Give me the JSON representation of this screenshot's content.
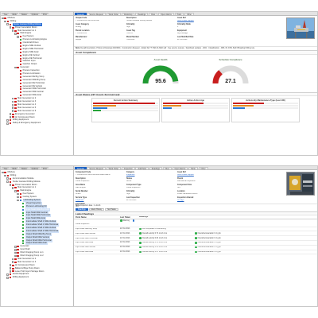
{
  "top": {
    "tree_tabs": [
      "Tree",
      "Work",
      "Status",
      "Options",
      "Print"
    ],
    "tree": [
      {
        "label": "Offshore",
        "indent": 0,
        "icon": "red",
        "exp": "-"
      },
      {
        "label": "Drilling",
        "indent": 1,
        "icon": "red",
        "exp": "-"
      },
      {
        "label": "Tender Assisted Drilling Module",
        "indent": 2,
        "icon": "red",
        "exp": "-",
        "selected": true
      },
      {
        "label": "Power Generation Room",
        "indent": 3,
        "icon": "red",
        "exp": "-"
      },
      {
        "label": "Main Generator no 1",
        "indent": 4,
        "icon": "red",
        "exp": "-"
      },
      {
        "label": "Main Engine",
        "indent": 5,
        "icon": "red",
        "exp": "-"
      },
      {
        "label": "Fuel System",
        "indent": 6,
        "icon": "red",
        "exp": "+"
      },
      {
        "label": "Process Lubricating Engine",
        "indent": 6,
        "icon": "green",
        "exp": "none"
      },
      {
        "label": "Crankshaft Driven",
        "indent": 6,
        "icon": "red",
        "exp": "none"
      },
      {
        "label": "Engine NDE Vertical",
        "indent": 6,
        "icon": "red",
        "exp": "none"
      },
      {
        "label": "Engine NDE Horizontal",
        "indent": 6,
        "icon": "red",
        "exp": "none"
      },
      {
        "label": "Engine NDE Axial",
        "indent": 6,
        "icon": "red",
        "exp": "none"
      },
      {
        "label": "Engine DE Vertical",
        "indent": 6,
        "icon": "red",
        "exp": "none"
      },
      {
        "label": "Engine DE Horizontal",
        "indent": 6,
        "icon": "red",
        "exp": "none"
      },
      {
        "label": "Gearbox Input",
        "indent": 6,
        "icon": "red",
        "exp": "none"
      },
      {
        "label": "Gearbox Output",
        "indent": 6,
        "icon": "red",
        "exp": "none"
      },
      {
        "label": "Generator",
        "indent": 5,
        "icon": "red",
        "exp": "-"
      },
      {
        "label": "Process Inspection",
        "indent": 6,
        "icon": "red",
        "exp": "none"
      },
      {
        "label": "Process Lubrication",
        "indent": 6,
        "icon": "red",
        "exp": "none"
      },
      {
        "label": "Generator DE Brg Temp",
        "indent": 6,
        "icon": "red",
        "exp": "none"
      },
      {
        "label": "Generator NDE Brg Temp",
        "indent": 6,
        "icon": "red",
        "exp": "none"
      },
      {
        "label": "Generator DE Horizontal",
        "indent": 6,
        "icon": "red",
        "exp": "none"
      },
      {
        "label": "Generator DE Vertical",
        "indent": 6,
        "icon": "red",
        "exp": "none"
      },
      {
        "label": "Generator NDE Horizontal",
        "indent": 6,
        "icon": "red",
        "exp": "none"
      },
      {
        "label": "Generator NDE Vertical",
        "indent": 6,
        "icon": "red",
        "exp": "none"
      },
      {
        "label": "Generator NDE Axial",
        "indent": 6,
        "icon": "red",
        "exp": "none"
      },
      {
        "label": "Main Generator no 2",
        "indent": 4,
        "icon": "red",
        "exp": "+"
      },
      {
        "label": "Main Generator no 3",
        "indent": 4,
        "icon": "red",
        "exp": "+"
      },
      {
        "label": "Main Generator no 4",
        "indent": 4,
        "icon": "red",
        "exp": "+"
      },
      {
        "label": "Main Generator no 5",
        "indent": 4,
        "icon": "red",
        "exp": "+"
      },
      {
        "label": "Main Generator no 6",
        "indent": 4,
        "icon": "red",
        "exp": "+"
      },
      {
        "label": "Emergency Generator",
        "indent": 3,
        "icon": "red",
        "exp": "+"
      },
      {
        "label": "Air Compressor Room",
        "indent": 3,
        "icon": "red",
        "exp": "+"
      },
      {
        "label": "Drilling Equipment",
        "indent": 2,
        "icon": "red",
        "exp": "+"
      },
      {
        "label": "Safety & Emergency Equipment",
        "indent": 2,
        "icon": "red",
        "exp": "+"
      }
    ],
    "tabs": [
      "General",
      "Service Request",
      "Work Order",
      "Workshop",
      "Readings",
      "Files",
      "Open Alarms",
      "Parts",
      "Other"
    ],
    "fields": [
      {
        "label": "Unique Code",
        "value": "TT/DRILLING/TAD MODULE"
      },
      {
        "label": "Description",
        "value": "Tender Assisted Drilling Module"
      },
      {
        "label": "Asset Ref",
        "value": "Click to Edit  Support",
        "link": true
      },
      {
        "label": "Asset Category",
        "value": "Drilling"
      },
      {
        "label": "Criticality",
        "value": "High"
      },
      {
        "label": "Criticality Rank",
        "value": "1"
      },
      {
        "label": "Parent Location",
        "value": "TT/DRILLING"
      },
      {
        "label": "Asset Tag",
        "value": "TAD-01"
      },
      {
        "label": "Equipment",
        "value": "Rig Package"
      },
      {
        "label": "Manufacturer",
        "value": "Keppel"
      },
      {
        "label": "Model Number",
        "value": "TAD-2020"
      },
      {
        "label": "Last Modified Date",
        "value": "21 Oct 2021"
      }
    ],
    "note_label": "Note",
    "note": "Overall Description, Photos & Drawings (#4/2000) · Construction Request · Added file TT-TAD-01-MAN.pdf · See service reviews · Significant updates · 2021 · Classification · ABS, IR, DNV, Bell Offloading Drilling rule",
    "section_title": "Asset Compliance",
    "gauges": [
      {
        "title": "Asset Health",
        "value": "95.6",
        "fraction": 0.956,
        "color": "#1f9a32"
      },
      {
        "title": "Schedule Compliance",
        "value": "27.1",
        "fraction": 0.271,
        "color": "#c81e1e"
      }
    ],
    "status_title": "Asset Status (197 Assets Summarised)",
    "panels": [
      {
        "title": "Current Action Summary",
        "bars": [
          0.95,
          0.35,
          0.22,
          0.12
        ]
      },
      {
        "title": "Active Action Age",
        "bars": [
          0.62,
          0.28,
          0.14
        ]
      },
      {
        "title": "Actions By Maintenance Type (Last 100)",
        "bars": [
          0.48,
          0.32,
          0.18
        ]
      }
    ]
  },
  "bottom": {
    "tree_tabs": [
      "Tree",
      "Work",
      "Status",
      "Options",
      "Print"
    ],
    "tree": [
      {
        "label": "Offshore",
        "indent": 0,
        "icon": "red",
        "exp": "-"
      },
      {
        "label": "Drilling",
        "indent": 1,
        "icon": "red",
        "exp": "-"
      },
      {
        "label": "Accommodation Module",
        "indent": 2,
        "icon": "red",
        "exp": "+"
      },
      {
        "label": "Tender Assisted Drilling Module",
        "indent": 2,
        "icon": "red",
        "exp": "-"
      },
      {
        "label": "Power Generation Room",
        "indent": 3,
        "icon": "red",
        "exp": "-"
      },
      {
        "label": "Main Generator no 1",
        "indent": 4,
        "icon": "red",
        "exp": "-"
      },
      {
        "label": "Main Engine",
        "indent": 5,
        "icon": "red",
        "exp": "-"
      },
      {
        "label": "Fuel System",
        "indent": 6,
        "icon": "red",
        "exp": "+"
      },
      {
        "label": "Cooling System",
        "indent": 6,
        "icon": "red",
        "exp": "+"
      },
      {
        "label": "Lubricating System",
        "indent": 6,
        "icon": "blue",
        "exp": "-",
        "highlight": true
      },
      {
        "label": "Visual Inspection",
        "indent": 7,
        "icon": "green",
        "exp": "none",
        "highlight": true
      },
      {
        "label": "Process Lubricating Oil",
        "indent": 7,
        "icon": "green",
        "exp": "none",
        "highlight": true
      },
      {
        "label": "Input Shaft NDE Brg Temp",
        "indent": 7,
        "icon": "blue",
        "exp": "none",
        "highlight": true,
        "selected": true
      },
      {
        "label": "Input Shaft NDE Vertical",
        "indent": 7,
        "icon": "green",
        "exp": "none",
        "highlight": true
      },
      {
        "label": "Input Shaft NDE Horizontal",
        "indent": 7,
        "icon": "green",
        "exp": "none",
        "highlight": true
      },
      {
        "label": "Input Shaft NDE Axial",
        "indent": 7,
        "icon": "green",
        "exp": "none",
        "highlight": true
      },
      {
        "label": "Intermediate Shaft 1 NDE Vertical",
        "indent": 7,
        "icon": "green",
        "exp": "none",
        "highlight": true
      },
      {
        "label": "Intermediate Shaft 1 NDE Horizontal",
        "indent": 7,
        "icon": "green",
        "exp": "none",
        "highlight": true
      },
      {
        "label": "Intermediate Shaft 2 NDE Vertical",
        "indent": 7,
        "icon": "green",
        "exp": "none",
        "highlight": true
      },
      {
        "label": "Intermediate Shaft 2 NDE Horizontal",
        "indent": 7,
        "icon": "green",
        "exp": "none",
        "highlight": true
      },
      {
        "label": "Output Shaft NDE Brg Temp",
        "indent": 7,
        "icon": "green",
        "exp": "none",
        "highlight": true
      },
      {
        "label": "Output Shaft NDE Vertical",
        "indent": 7,
        "icon": "green",
        "exp": "none",
        "highlight": true
      },
      {
        "label": "Output Shaft NDE Horizontal",
        "indent": 7,
        "icon": "green",
        "exp": "none",
        "highlight": true
      },
      {
        "label": "Output Shaft NDE Axial",
        "indent": 7,
        "icon": "green",
        "exp": "none",
        "highlight": true
      },
      {
        "label": "Generator",
        "indent": 5,
        "icon": "red",
        "exp": "+"
      },
      {
        "label": "Input Shaft",
        "indent": 5,
        "icon": "red",
        "exp": "+"
      },
      {
        "label": "Wind Charging Pump no 1",
        "indent": 5,
        "icon": "red",
        "exp": "+"
      },
      {
        "label": "Wind Charging Pump no 2",
        "indent": 5,
        "icon": "red",
        "exp": "+"
      },
      {
        "label": "Main Generator no 2",
        "indent": 4,
        "icon": "red",
        "exp": "+"
      },
      {
        "label": "Main Generator no 3",
        "indent": 4,
        "icon": "red",
        "exp": "+"
      },
      {
        "label": "Air Compressor Room",
        "indent": 3,
        "icon": "red",
        "exp": "+"
      },
      {
        "label": "Ballast & Bilge Pump Room",
        "indent": 3,
        "icon": "red",
        "exp": "+"
      },
      {
        "label": "Lower Hull Import Storage Room",
        "indent": 3,
        "icon": "red",
        "exp": "+"
      },
      {
        "label": "Derrick Equipment",
        "indent": 2,
        "icon": "red",
        "exp": "+"
      },
      {
        "label": "Drilling Equipment",
        "indent": 2,
        "icon": "red",
        "exp": "+"
      }
    ],
    "tabs": [
      "General",
      "Service Request",
      "Work Order",
      "Inspection",
      "Add Parts",
      "Readings",
      "Files",
      "Open Alarms",
      "Parts",
      "Other"
    ],
    "fields": [
      {
        "label": "Component Code",
        "value": "TT/DRILLING/TAD/PGR/MG1/ME/LUBE/VI"
      },
      {
        "label": "Category",
        "value": "Inspection",
        "link": true
      },
      {
        "label": "Asset Ref",
        "value": "Click to Edit  Support",
        "link": true
      },
      {
        "label": "Description",
        "value": "Visual Inspection"
      },
      {
        "label": "Status",
        "value": "Active"
      },
      {
        "label": "Parent",
        "value": "Mechanical Inspection"
      },
      {
        "label": "Area Name",
        "value": "Main Engine"
      },
      {
        "label": "Component Type",
        "value": "Visual Inspection"
      },
      {
        "label": "Component Size",
        "value": "N/A"
      },
      {
        "label": "Serial Number",
        "value": "Check"
      },
      {
        "label": "Criticality",
        "value": "High"
      },
      {
        "label": "Location",
        "value": "Power Generation Room"
      },
      {
        "label": "Service Type",
        "value": "Inspection",
        "link": true
      },
      {
        "label": "Last Inspection",
        "value": "22 Oct 2021"
      },
      {
        "label": "Inspection Interval",
        "value": "30 Days",
        "link": true
      },
      {
        "label": "Last Alarm",
        "value": "N/A"
      }
    ],
    "note_label": "Note",
    "note": "Inspection date : 1-Jul-21",
    "subtabs": [
      "Readings",
      "Alarm History",
      "Sub Tasks"
    ],
    "section_title": "Latest Readings",
    "columns": [
      "Point Name",
      "Last Taken",
      "Readings",
      ""
    ],
    "legend": [
      {
        "label": "Warning",
        "color": "green"
      },
      {
        "label": "",
        "color": "blue"
      }
    ],
    "rows": [
      {
        "name": "Visual Inspection",
        "date": "",
        "r1": "",
        "r2": ""
      },
      {
        "name": "Input Shaft NDE Brg Temp",
        "date": "22 Oct 2021",
        "r1": "Not Completed  Oil Monitoring",
        "r2": ""
      },
      {
        "name": "Input Shaft NDE Vertical",
        "date": "22 Oct 2021",
        "r1": "Overall velocity 0.74 mm/s rms",
        "r2": "Overall acceleration 0.4 g pk"
      },
      {
        "name": "Input Shaft NDE Horizontal",
        "date": "22 Oct 2021",
        "r1": "Overall velocity 0.81 mm/s rms",
        "r2": "Overall acceleration 0.4 g pk"
      },
      {
        "name": "Input Shaft NDE Axial",
        "date": "22 Oct 2021",
        "r1": "Overall velocity 0.55 mm/s rms",
        "r2": "Overall acceleration 0.3 g pk"
      },
      {
        "name": "Input Shaft NDE Vertical",
        "date": "22 Oct 2021",
        "r1": "Overall velocity 0.63 mm/s rms",
        "r2": "Overall acceleration 0.5 g pk"
      },
      {
        "name": "Input Shaft NDE Axial",
        "date": "22 Oct 2021",
        "r1": "Overall velocity 0.47 mm/s rms",
        "r2": "Overall acceleration 0.2 g pk"
      }
    ]
  }
}
